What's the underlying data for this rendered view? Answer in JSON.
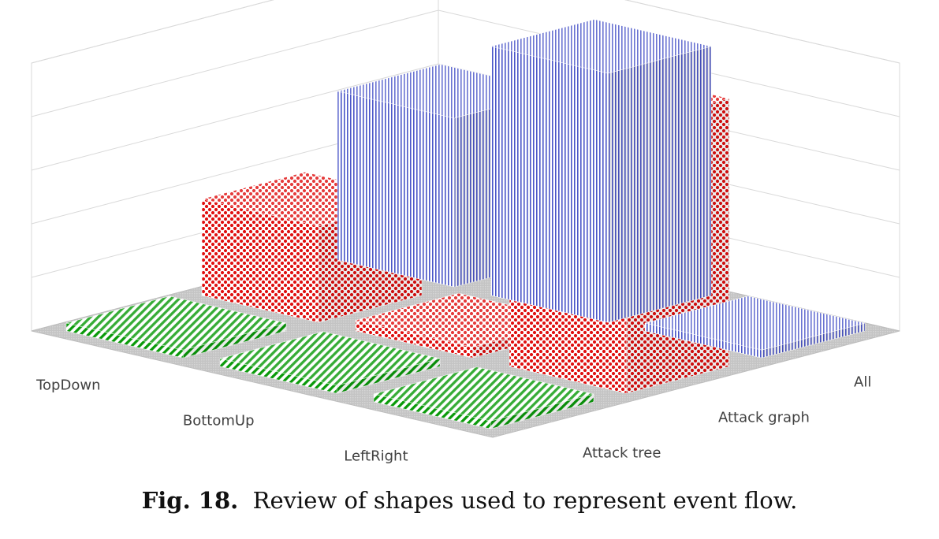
{
  "chart_data": {
    "type": "bar3d",
    "categories": [
      "TopDown",
      "BottomUp",
      "LeftRight"
    ],
    "series": [
      {
        "name": "All",
        "values": [
          63,
          93,
          2
        ],
        "color": "#4a55c8",
        "pattern": "vertical-stripes"
      },
      {
        "name": "Attack graph",
        "values": [
          36,
          4,
          100
        ],
        "color": "#e01010",
        "pattern": "dots"
      },
      {
        "name": "Attack tree",
        "values": [
          0,
          0,
          0
        ],
        "color": "#0a9a0a",
        "pattern": "diagonal-stripes"
      }
    ],
    "zlim": [
      0,
      100
    ],
    "zticks": [
      0,
      20,
      40,
      60,
      80,
      100
    ],
    "grid": true
  },
  "caption": {
    "label": "Fig. 18.",
    "text": "Review of shapes used to represent event flow."
  }
}
